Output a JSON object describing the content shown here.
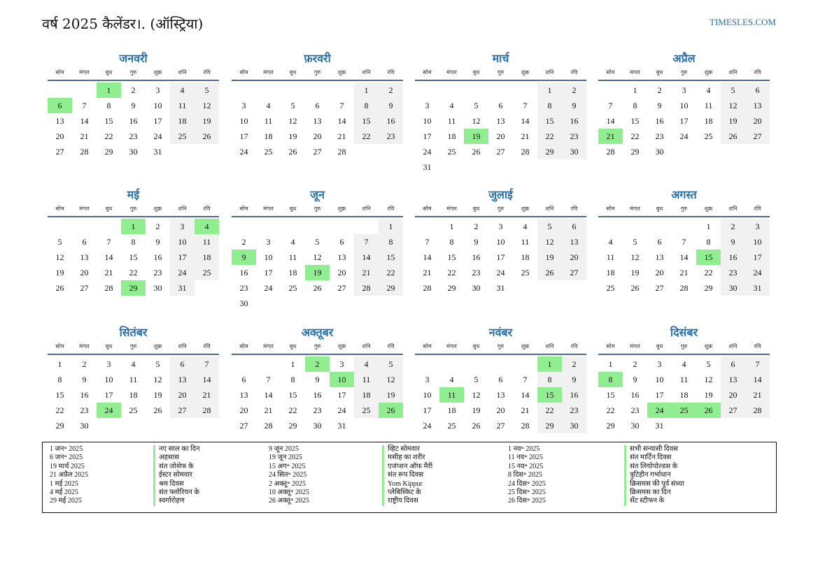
{
  "header": {
    "title": "वर्ष 2025 कैलेंडर।. (ऑस्ट्रिया)",
    "site": "TIMESLES.COM"
  },
  "weekdays": [
    "सोम",
    "मंगल",
    "बुध",
    "गुरु",
    "शुक्र",
    "शनि",
    "रवि"
  ],
  "months": [
    {
      "name": "जनवरी",
      "offset": 2,
      "days": 31,
      "holidays": [
        1,
        6
      ]
    },
    {
      "name": "फ़रवरी",
      "offset": 5,
      "days": 28,
      "holidays": []
    },
    {
      "name": "मार्च",
      "offset": 5,
      "days": 31,
      "holidays": [
        19
      ]
    },
    {
      "name": "अप्रैल",
      "offset": 1,
      "days": 30,
      "holidays": [
        21
      ]
    },
    {
      "name": "मई",
      "offset": 3,
      "days": 31,
      "holidays": [
        1,
        4,
        29
      ]
    },
    {
      "name": "जून",
      "offset": 6,
      "days": 30,
      "holidays": [
        9,
        19
      ]
    },
    {
      "name": "जुलाई",
      "offset": 1,
      "days": 31,
      "holidays": []
    },
    {
      "name": "अगस्त",
      "offset": 4,
      "days": 31,
      "holidays": [
        15
      ]
    },
    {
      "name": "सितंबर",
      "offset": 0,
      "days": 30,
      "holidays": [
        24
      ]
    },
    {
      "name": "अक्तूबर",
      "offset": 2,
      "days": 31,
      "holidays": [
        2,
        10,
        26
      ]
    },
    {
      "name": "नवंबर",
      "offset": 5,
      "days": 30,
      "holidays": [
        1,
        11,
        15
      ]
    },
    {
      "name": "दिसंबर",
      "offset": 0,
      "days": 31,
      "holidays": [
        8,
        24,
        25,
        26
      ]
    }
  ],
  "legend": [
    {
      "dates": [
        "1 जन॰ 2025",
        "6 जन॰ 2025",
        "19 मार्च 2025",
        "21 अप्रैल 2025",
        "1 मई 2025",
        "4 मई 2025",
        "29 मई 2025"
      ],
      "names": [
        "नए साल का दिन",
        "अहसास",
        "संत जोसेफ के",
        "ईस्टर सोमवार",
        "श्रम दिवस",
        "संत फ्लोरियन के",
        "स्वर्गारोहण"
      ]
    },
    {
      "dates": [
        "9 जून 2025",
        "19 जून 2025",
        "15 अग॰ 2025",
        "24 सित॰ 2025",
        "2 अक्तू॰ 2025",
        "10 अक्तू॰ 2025",
        "26 अक्तू॰ 2025"
      ],
      "names": [
        "व्हिट सोमवार",
        "मसीह का शरीर",
        "एजंप्शन ऑफ मैरी",
        "संत रूप दिवस",
        "Yom Kippur",
        "प्लेबिस्किट के",
        "राष्ट्रीय दिवस"
      ]
    },
    {
      "dates": [
        "1 नव॰ 2025",
        "11 नव॰ 2025",
        "15 नव॰ 2025",
        "8 दिस॰ 2025",
        "24 दिस॰ 2025",
        "25 दिस॰ 2025",
        "26 दिस॰ 2025"
      ],
      "names": [
        "सभी सन्यासी दिवस",
        "संत मार्टिन दिवस",
        "संत लियोपोल्डस के",
        "त्रुटिहीन गर्भाधान",
        "क्रिसमस की पूर्व संध्या",
        "क्रिसमस का दिन",
        "सेंट स्टीफन के"
      ]
    }
  ]
}
